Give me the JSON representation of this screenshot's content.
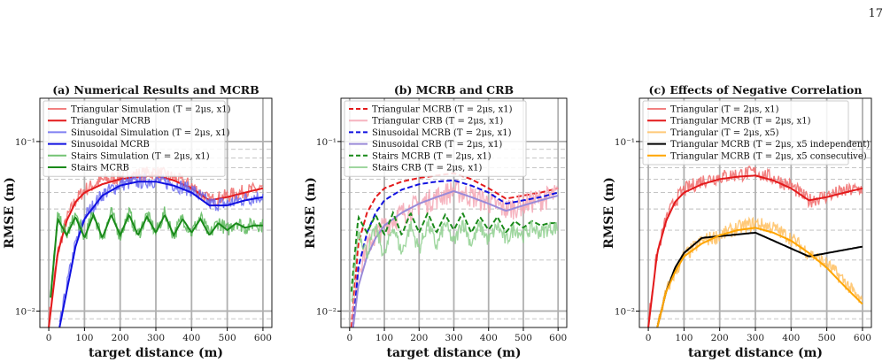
{
  "page_number": "17",
  "chart_data": [
    {
      "type": "line",
      "title": "(a) Numerical Results and MCRB",
      "xlabel": "target distance (m)",
      "ylabel": "RMSE (m)",
      "xlim": [
        -25,
        625
      ],
      "ylim": [
        0.008,
        0.18
      ],
      "yscale": "log",
      "xticks": [
        0,
        100,
        200,
        300,
        400,
        500,
        600
      ],
      "xtick_labels": [
        "0",
        "100",
        "200",
        "300",
        "400",
        "500",
        "600"
      ],
      "yticks": [
        0.01,
        0.1
      ],
      "ytick_labels": [
        "10⁻²",
        "10⁻¹"
      ],
      "grid": true,
      "legend_position": "top-left",
      "series": [
        {
          "name": "Triangular Simulation (T = 2μs, x1)",
          "color": "#f06a6a",
          "style": "solid",
          "noise": true,
          "x": [
            0,
            25,
            50,
            75,
            100,
            150,
            200,
            250,
            300,
            350,
            400,
            450,
            500,
            550,
            600
          ],
          "y": [
            0.009,
            0.022,
            0.035,
            0.045,
            0.052,
            0.059,
            0.062,
            0.064,
            0.066,
            0.061,
            0.055,
            0.045,
            0.048,
            0.051,
            0.053
          ]
        },
        {
          "name": "Triangular MCRB",
          "color": "#e31a1c",
          "style": "solid",
          "x": [
            0,
            25,
            50,
            75,
            100,
            150,
            200,
            250,
            300,
            350,
            400,
            450,
            500,
            550,
            600
          ],
          "y": [
            0.008,
            0.022,
            0.034,
            0.044,
            0.05,
            0.056,
            0.06,
            0.062,
            0.063,
            0.059,
            0.053,
            0.045,
            0.047,
            0.05,
            0.053
          ]
        },
        {
          "name": "Sinusoidal Simulation (T = 2μs, x1)",
          "color": "#6a6af0",
          "style": "solid",
          "noise": true,
          "x": [
            30,
            50,
            75,
            100,
            150,
            200,
            250,
            300,
            350,
            400,
            450,
            500,
            550,
            600
          ],
          "y": [
            0.008,
            0.014,
            0.025,
            0.036,
            0.049,
            0.056,
            0.058,
            0.059,
            0.056,
            0.052,
            0.043,
            0.043,
            0.046,
            0.048
          ]
        },
        {
          "name": "Sinusoidal MCRB",
          "color": "#1010e0",
          "style": "solid",
          "x": [
            30,
            50,
            75,
            100,
            150,
            200,
            250,
            300,
            350,
            400,
            450,
            500,
            550,
            600
          ],
          "y": [
            0.008,
            0.013,
            0.024,
            0.035,
            0.048,
            0.055,
            0.058,
            0.058,
            0.055,
            0.05,
            0.042,
            0.042,
            0.045,
            0.047
          ]
        },
        {
          "name": "Stairs Simulation (T = 2μs, x1)",
          "color": "#5cb85c",
          "style": "solid",
          "noise": true,
          "x": [
            5,
            25,
            50,
            75,
            100,
            125,
            150,
            175,
            200,
            225,
            250,
            275,
            300,
            325,
            350,
            375,
            400,
            425,
            450,
            475,
            500,
            525,
            550,
            575,
            600
          ],
          "y": [
            0.012,
            0.036,
            0.028,
            0.037,
            0.027,
            0.038,
            0.027,
            0.038,
            0.028,
            0.038,
            0.028,
            0.037,
            0.029,
            0.038,
            0.028,
            0.036,
            0.029,
            0.036,
            0.028,
            0.034,
            0.03,
            0.034,
            0.031,
            0.033,
            0.032
          ]
        },
        {
          "name": "Stairs MCRB",
          "color": "#1a8a1a",
          "style": "solid",
          "x": [
            5,
            25,
            50,
            75,
            100,
            125,
            150,
            175,
            200,
            225,
            250,
            275,
            300,
            325,
            350,
            375,
            400,
            425,
            450,
            475,
            500,
            525,
            550,
            575,
            600
          ],
          "y": [
            0.012,
            0.035,
            0.028,
            0.036,
            0.027,
            0.037,
            0.027,
            0.037,
            0.028,
            0.037,
            0.028,
            0.036,
            0.029,
            0.037,
            0.028,
            0.035,
            0.029,
            0.035,
            0.028,
            0.033,
            0.03,
            0.033,
            0.031,
            0.032,
            0.032
          ]
        }
      ]
    },
    {
      "type": "line",
      "title": "(b) MCRB and CRB",
      "xlabel": "target distance (m)",
      "ylabel": "RMSE (m)",
      "xlim": [
        -25,
        625
      ],
      "ylim": [
        0.008,
        0.18
      ],
      "yscale": "log",
      "xticks": [
        0,
        100,
        200,
        300,
        400,
        500,
        600
      ],
      "xtick_labels": [
        "0",
        "100",
        "200",
        "300",
        "400",
        "500",
        "600"
      ],
      "yticks": [
        0.01,
        0.1
      ],
      "ytick_labels": [
        "10⁻²",
        "10⁻¹"
      ],
      "grid": true,
      "legend_position": "top-left",
      "series": [
        {
          "name": "Triangular MCRB (T = 2μs, x1)",
          "color": "#e31a1c",
          "style": "dashed",
          "x": [
            5,
            25,
            50,
            75,
            100,
            150,
            200,
            250,
            300,
            350,
            400,
            450,
            500,
            550,
            600
          ],
          "y": [
            0.008,
            0.025,
            0.038,
            0.047,
            0.053,
            0.058,
            0.061,
            0.063,
            0.065,
            0.06,
            0.053,
            0.046,
            0.048,
            0.05,
            0.053
          ]
        },
        {
          "name": "Triangular CRB (T = 2μs, x1)",
          "color": "#f4a6b4",
          "style": "solid",
          "noise": true,
          "x": [
            5,
            25,
            50,
            75,
            100,
            150,
            200,
            250,
            300,
            350,
            400,
            450,
            500,
            550,
            600
          ],
          "y": [
            0.008,
            0.018,
            0.024,
            0.028,
            0.032,
            0.038,
            0.043,
            0.047,
            0.052,
            0.048,
            0.044,
            0.04,
            0.043,
            0.046,
            0.049
          ]
        },
        {
          "name": "Sinusoidal MCRB (T = 2μs, x1)",
          "color": "#1010e0",
          "style": "dashed",
          "x": [
            10,
            25,
            50,
            75,
            100,
            150,
            200,
            250,
            300,
            350,
            400,
            450,
            500,
            550,
            600
          ],
          "y": [
            0.008,
            0.018,
            0.029,
            0.038,
            0.045,
            0.052,
            0.056,
            0.058,
            0.059,
            0.055,
            0.05,
            0.043,
            0.045,
            0.047,
            0.05
          ]
        },
        {
          "name": "Sinusoidal CRB (T = 2μs, x1)",
          "color": "#9a8ad8",
          "style": "solid",
          "x": [
            10,
            25,
            50,
            75,
            100,
            150,
            200,
            250,
            300,
            350,
            400,
            450,
            500,
            550,
            600
          ],
          "y": [
            0.008,
            0.014,
            0.021,
            0.027,
            0.032,
            0.038,
            0.043,
            0.047,
            0.051,
            0.047,
            0.043,
            0.039,
            0.042,
            0.045,
            0.048
          ]
        },
        {
          "name": "Stairs MCRB (T = 2μs, x1)",
          "color": "#1a8a1a",
          "style": "dashed",
          "x": [
            5,
            25,
            50,
            75,
            100,
            125,
            150,
            175,
            200,
            225,
            250,
            275,
            300,
            325,
            350,
            375,
            400,
            425,
            450,
            475,
            500,
            525,
            550,
            575,
            600
          ],
          "y": [
            0.013,
            0.036,
            0.029,
            0.037,
            0.028,
            0.038,
            0.028,
            0.038,
            0.029,
            0.038,
            0.029,
            0.037,
            0.03,
            0.038,
            0.029,
            0.036,
            0.03,
            0.036,
            0.029,
            0.034,
            0.031,
            0.034,
            0.032,
            0.033,
            0.033
          ]
        },
        {
          "name": "Stairs CRB (T = 2μs, x1)",
          "color": "#8fd08f",
          "style": "solid",
          "noise": true,
          "x": [
            5,
            25,
            50,
            75,
            100,
            125,
            150,
            175,
            200,
            225,
            250,
            275,
            300,
            325,
            350,
            375,
            400,
            425,
            450,
            475,
            500,
            525,
            550,
            575,
            600
          ],
          "y": [
            0.011,
            0.03,
            0.022,
            0.031,
            0.021,
            0.032,
            0.022,
            0.032,
            0.023,
            0.033,
            0.024,
            0.033,
            0.025,
            0.034,
            0.025,
            0.032,
            0.026,
            0.032,
            0.026,
            0.031,
            0.028,
            0.031,
            0.029,
            0.031,
            0.031
          ]
        }
      ]
    },
    {
      "type": "line",
      "title": "(c) Effects of Negative Correlation",
      "xlabel": "target distance (m)",
      "ylabel": "RMSE (m)",
      "xlim": [
        -25,
        625
      ],
      "ylim": [
        0.008,
        0.18
      ],
      "yscale": "log",
      "xticks": [
        0,
        100,
        200,
        300,
        400,
        500,
        600
      ],
      "xtick_labels": [
        "0",
        "100",
        "200",
        "300",
        "400",
        "500",
        "600"
      ],
      "yticks": [
        0.01,
        0.1
      ],
      "ytick_labels": [
        "10⁻²",
        "10⁻¹"
      ],
      "grid": true,
      "legend_position": "top-left",
      "series": [
        {
          "name": "Triangular (T = 2μs, x1)",
          "color": "#f06a6a",
          "style": "solid",
          "noise": true,
          "x": [
            0,
            25,
            50,
            75,
            100,
            150,
            200,
            250,
            300,
            350,
            400,
            450,
            500,
            550,
            600
          ],
          "y": [
            0.009,
            0.022,
            0.035,
            0.045,
            0.052,
            0.059,
            0.062,
            0.064,
            0.066,
            0.061,
            0.055,
            0.045,
            0.048,
            0.051,
            0.053
          ]
        },
        {
          "name": "Triangular MCRB (T = 2μs, x1)",
          "color": "#e31a1c",
          "style": "solid",
          "x": [
            0,
            25,
            50,
            75,
            100,
            150,
            200,
            250,
            300,
            350,
            400,
            450,
            500,
            550,
            600
          ],
          "y": [
            0.008,
            0.022,
            0.034,
            0.044,
            0.05,
            0.056,
            0.06,
            0.062,
            0.063,
            0.059,
            0.053,
            0.045,
            0.047,
            0.05,
            0.053
          ]
        },
        {
          "name": "Triangular (T = 2μs, x5)",
          "color": "#ffc060",
          "style": "solid",
          "noise": true,
          "x": [
            25,
            50,
            75,
            100,
            150,
            200,
            250,
            300,
            350,
            400,
            450,
            500,
            550,
            600
          ],
          "y": [
            0.008,
            0.013,
            0.017,
            0.021,
            0.026,
            0.028,
            0.031,
            0.033,
            0.031,
            0.027,
            0.022,
            0.019,
            0.015,
            0.011
          ]
        },
        {
          "name": "Triangular MCRB (T = 2μs, x5 independent)",
          "color": "#000000",
          "style": "solid",
          "x": [
            25,
            50,
            75,
            100,
            150,
            300,
            450,
            600
          ],
          "y": [
            0.008,
            0.013,
            0.018,
            0.022,
            0.027,
            0.029,
            0.021,
            0.024
          ]
        },
        {
          "name": "Triangular MCRB (T = 2μs, x5 consecutive)",
          "color": "#ffa500",
          "style": "solid",
          "x": [
            25,
            50,
            75,
            100,
            150,
            200,
            250,
            300,
            350,
            400,
            450,
            500,
            550,
            600
          ],
          "y": [
            0.008,
            0.013,
            0.017,
            0.021,
            0.025,
            0.028,
            0.03,
            0.031,
            0.029,
            0.026,
            0.022,
            0.018,
            0.014,
            0.011
          ]
        }
      ]
    }
  ]
}
